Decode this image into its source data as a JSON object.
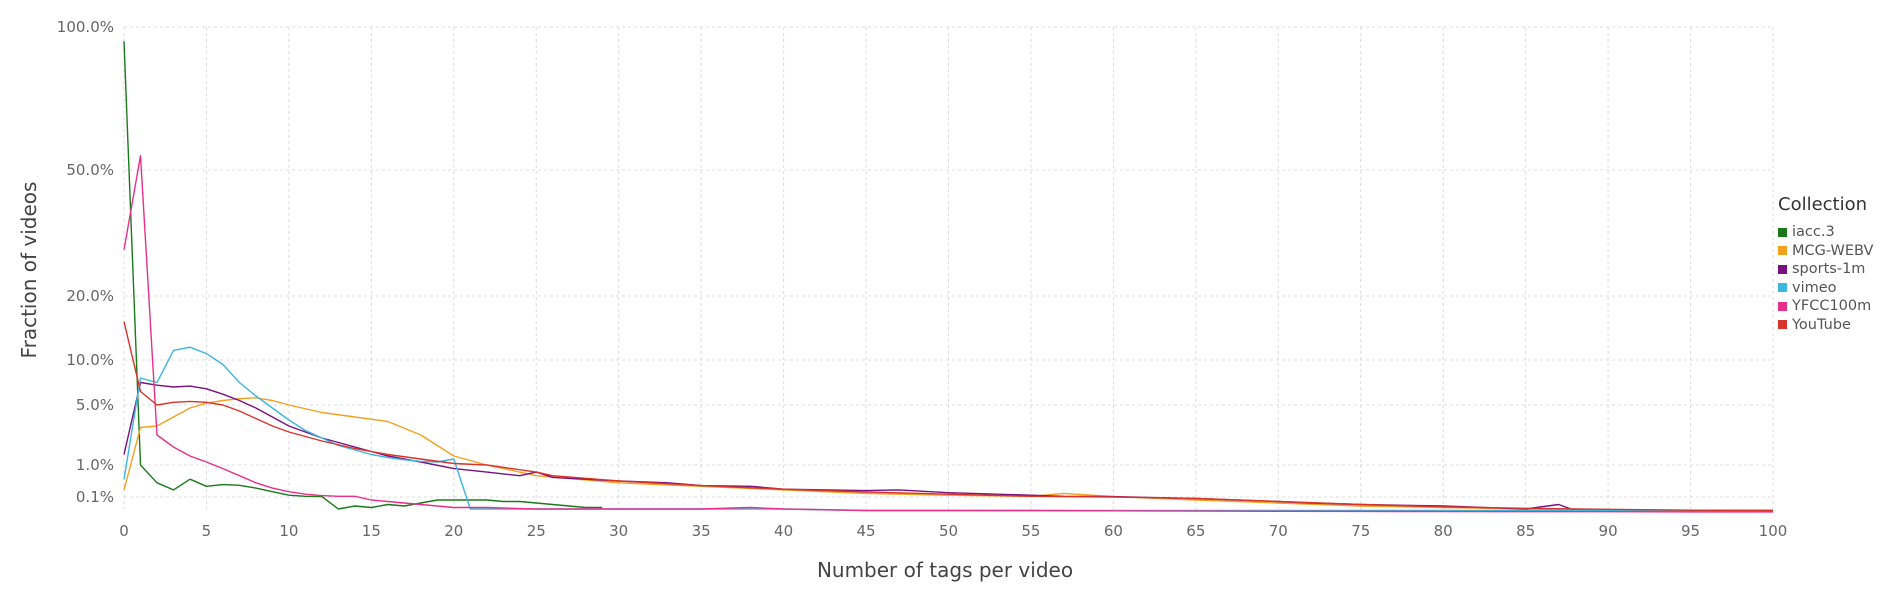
{
  "chart_data": {
    "type": "line",
    "xlabel": "Number of tags per video",
    "ylabel": "Fraction of videos",
    "xlim": [
      0,
      100
    ],
    "xticks": [
      0,
      5,
      10,
      15,
      20,
      25,
      30,
      35,
      40,
      45,
      50,
      55,
      60,
      65,
      70,
      75,
      80,
      85,
      90,
      95,
      100
    ],
    "yticks": [
      {
        "value": 100,
        "label": "100.0%"
      },
      {
        "value": 50,
        "label": "50.0%"
      },
      {
        "value": 20,
        "label": "20.0%"
      },
      {
        "value": 10,
        "label": "10.0%"
      },
      {
        "value": 5,
        "label": "5.0%"
      },
      {
        "value": 1,
        "label": "1.0%"
      },
      {
        "value": 0.1,
        "label": "0.1%"
      }
    ],
    "grid": true,
    "legend": {
      "title": "Collection",
      "placement": "right"
    },
    "series": [
      {
        "name": "iacc.3",
        "color": "#1a7a1a",
        "x": [
          0,
          1,
          2,
          3,
          4,
          5,
          6,
          7,
          8,
          9,
          10,
          11,
          12,
          13,
          14,
          15,
          16,
          17,
          18,
          19,
          20,
          21,
          22,
          23,
          24,
          25,
          26,
          27,
          28,
          29
        ],
        "y": [
          95,
          1,
          0.5,
          0.3,
          0.6,
          0.4,
          0.45,
          0.43,
          0.35,
          0.25,
          0.15,
          0.12,
          0.11,
          0.02,
          0.04,
          0.03,
          0.05,
          0.04,
          0.06,
          0.08,
          0.08,
          0.08,
          0.08,
          0.07,
          0.07,
          0.06,
          0.05,
          0.04,
          0.03,
          0.03
        ]
      },
      {
        "name": "MCG-WEBV",
        "color": "#f2a11f",
        "x": [
          0,
          1,
          2,
          3,
          4,
          5,
          6,
          7,
          8,
          9,
          10,
          12,
          14,
          16,
          18,
          20,
          22,
          25,
          30,
          35,
          40,
          45,
          50,
          55,
          57,
          60,
          65,
          70,
          75,
          80,
          85,
          90,
          95,
          100
        ],
        "y": [
          0.3,
          3.5,
          3.6,
          4.2,
          4.8,
          5.2,
          5.5,
          5.7,
          5.8,
          5.5,
          5.0,
          4.5,
          4.2,
          3.9,
          3.0,
          1.6,
          1.0,
          0.7,
          0.5,
          0.4,
          0.3,
          0.2,
          0.15,
          0.12,
          0.2,
          0.11,
          0.08,
          0.06,
          0.04,
          0.03,
          0.02,
          0.015,
          0.012,
          0.01
        ]
      },
      {
        "name": "sports-1m",
        "color": "#7b1080",
        "x": [
          0,
          1,
          2,
          3,
          4,
          5,
          6,
          7,
          8,
          9,
          10,
          12,
          14,
          16,
          18,
          20,
          22,
          24,
          25,
          26,
          28,
          30,
          33,
          35,
          38,
          40,
          45,
          47,
          50,
          55,
          57,
          60,
          65,
          70,
          72,
          75,
          80,
          85,
          87,
          88,
          90,
          95,
          100
        ],
        "y": [
          1.7,
          7.5,
          7.2,
          7.0,
          7.1,
          6.8,
          6.2,
          5.5,
          4.8,
          4.2,
          3.6,
          2.8,
          2.2,
          1.6,
          1.2,
          0.9,
          0.8,
          0.7,
          0.8,
          0.65,
          0.6,
          0.55,
          0.5,
          0.42,
          0.4,
          0.32,
          0.28,
          0.3,
          0.22,
          0.15,
          0.12,
          0.11,
          0.09,
          0.07,
          0.06,
          0.05,
          0.04,
          0.02,
          0.05,
          0.01,
          0.01,
          0.01,
          0.01
        ]
      },
      {
        "name": "vimeo",
        "color": "#3bb7e0",
        "x": [
          0,
          1,
          2,
          3,
          4,
          5,
          6,
          7,
          8,
          9,
          10,
          11,
          12,
          13,
          14,
          15,
          16,
          17,
          18,
          19,
          20,
          21,
          22,
          25,
          30,
          35,
          40,
          45,
          50,
          55,
          60,
          65,
          70,
          75,
          80,
          85,
          90,
          95,
          100
        ],
        "y": [
          0.6,
          8.0,
          7.5,
          11.5,
          12.0,
          11.0,
          9.5,
          7.5,
          6.0,
          4.8,
          4.0,
          3.3,
          2.8,
          2.3,
          2.0,
          1.7,
          1.5,
          1.35,
          1.25,
          1.2,
          1.4,
          0.02,
          0.02,
          0.02,
          0.02,
          0.02,
          0.02,
          0.01,
          0.01,
          0.01,
          0.01,
          0.01,
          0.01,
          0.01,
          0.01,
          0.01,
          0.01,
          0.01,
          0.01
        ]
      },
      {
        "name": "YFCC100m",
        "color": "#e8308a",
        "x": [
          0,
          1,
          2,
          3,
          4,
          5,
          6,
          7,
          8,
          9,
          10,
          11,
          12,
          13,
          14,
          15,
          16,
          17,
          18,
          19,
          20,
          22,
          25,
          30,
          35,
          38,
          40,
          45,
          50,
          55,
          60,
          65,
          70,
          75,
          80,
          85,
          90,
          95,
          100
        ],
        "y": [
          31,
          55,
          3.0,
          2.2,
          1.6,
          1.2,
          0.9,
          0.7,
          0.5,
          0.35,
          0.25,
          0.18,
          0.14,
          0.12,
          0.12,
          0.08,
          0.07,
          0.06,
          0.05,
          0.04,
          0.03,
          0.03,
          0.02,
          0.02,
          0.02,
          0.03,
          0.02,
          0.01,
          0.01,
          0.01,
          0.008,
          0.006,
          0.005,
          0.004,
          0.003,
          0.002,
          0.002,
          0.001,
          0.001
        ]
      },
      {
        "name": "YouTube",
        "color": "#d9342b",
        "x": [
          0,
          1,
          2,
          3,
          4,
          5,
          6,
          7,
          8,
          9,
          10,
          12,
          14,
          16,
          18,
          20,
          22,
          25,
          26,
          30,
          35,
          40,
          45,
          50,
          55,
          60,
          65,
          70,
          75,
          80,
          85,
          90,
          95,
          100
        ],
        "y": [
          16,
          6.5,
          5.0,
          5.3,
          5.4,
          5.3,
          5.0,
          4.6,
          4.1,
          3.6,
          3.2,
          2.6,
          2.1,
          1.7,
          1.4,
          1.1,
          1.0,
          0.8,
          0.7,
          0.55,
          0.42,
          0.32,
          0.24,
          0.18,
          0.12,
          0.1,
          0.09,
          0.07,
          0.05,
          0.035,
          0.025,
          0.018,
          0.012,
          0.01
        ]
      }
    ]
  }
}
